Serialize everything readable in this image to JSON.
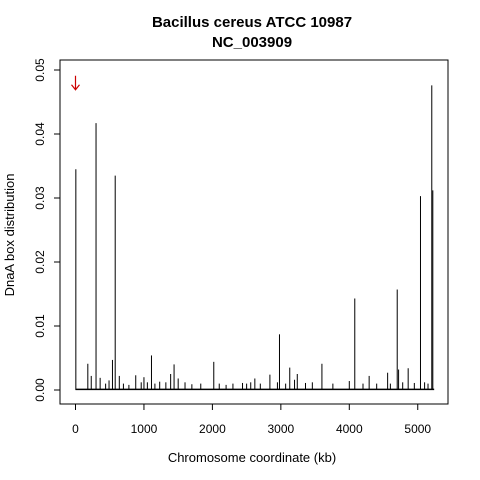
{
  "chart_data": {
    "type": "bar",
    "title": "Bacillus cereus ATCC 10987",
    "subtitle": "NC_003909",
    "xlabel": "Chromosome coordinate (kb)",
    "ylabel": "DnaA box distribution",
    "xlim": [
      0,
      5240
    ],
    "ylim": [
      0,
      0.05
    ],
    "xticks": [
      0,
      1000,
      2000,
      3000,
      4000,
      5000
    ],
    "yticks": [
      "0.00",
      "0.01",
      "0.02",
      "0.03",
      "0.04",
      "0.05"
    ],
    "grid": false,
    "legend": "none",
    "colors": {
      "bars": "#000000",
      "marker": "#cc0000"
    },
    "marker": {
      "x": 0,
      "y": 0.048,
      "icon": "down-arrow-icon"
    },
    "series": [
      {
        "x": [
          5,
          180,
          230,
          300,
          360,
          440,
          490,
          540,
          580,
          640,
          700,
          780,
          880,
          960,
          1000,
          1050,
          1110,
          1160,
          1230,
          1320,
          1390,
          1440,
          1500,
          1600,
          1700,
          1830,
          2020,
          2100,
          2200,
          2300,
          2440,
          2500,
          2560,
          2620,
          2700,
          2840,
          2950,
          2980,
          3070,
          3130,
          3200,
          3240,
          3360,
          3460,
          3600,
          3760,
          4000,
          4080,
          4200,
          4290,
          4400,
          4560,
          4600,
          4700,
          4720,
          4780,
          4860,
          4950,
          5040,
          5100,
          5150,
          5205,
          5220
        ],
        "values": [
          0.0345,
          0.0041,
          0.0022,
          0.0417,
          0.0019,
          0.001,
          0.0015,
          0.0047,
          0.0335,
          0.0022,
          0.001,
          0.0008,
          0.0023,
          0.0012,
          0.002,
          0.0012,
          0.0054,
          0.001,
          0.0013,
          0.0012,
          0.0025,
          0.004,
          0.0018,
          0.0012,
          0.0009,
          0.001,
          0.0044,
          0.001,
          0.0008,
          0.001,
          0.0011,
          0.001,
          0.0012,
          0.0018,
          0.001,
          0.0024,
          0.0012,
          0.0087,
          0.001,
          0.0035,
          0.0016,
          0.0025,
          0.0011,
          0.0012,
          0.0041,
          0.001,
          0.0014,
          0.0143,
          0.001,
          0.0022,
          0.001,
          0.0027,
          0.001,
          0.0157,
          0.0032,
          0.0012,
          0.0034,
          0.0011,
          0.0303,
          0.0012,
          0.001,
          0.0476,
          0.0312
        ]
      }
    ]
  }
}
